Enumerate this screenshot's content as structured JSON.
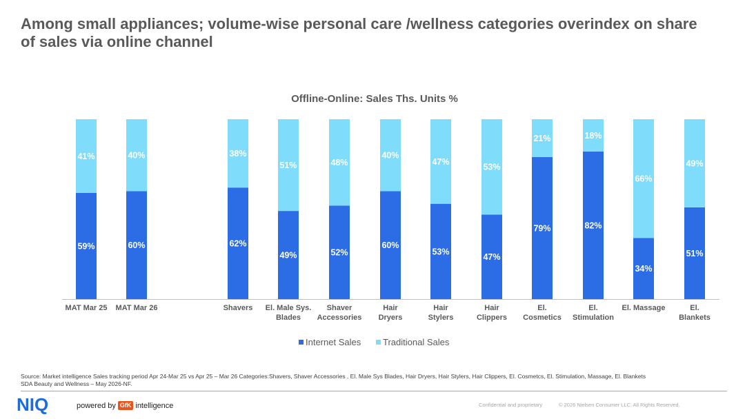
{
  "headline": "Among small appliances; volume-wise personal care /wellness categories overindex on share of sales via online channel",
  "colors": {
    "internet": "#2c6de6",
    "traditional": "#7fdcfa"
  },
  "chart_data": {
    "type": "bar",
    "stacked": true,
    "percent_stacked": true,
    "title": "Offline-Online: Sales Ths. Units %",
    "legend_position": "bottom",
    "grid": false,
    "ylim": [
      0,
      100
    ],
    "categories": [
      [
        "MAT Mar 25"
      ],
      [
        "MAT Mar 26"
      ],
      [
        "Shavers"
      ],
      [
        "El. Male Sys.",
        "Blades"
      ],
      [
        "Shaver",
        "Accessories"
      ],
      [
        "Hair",
        "Dryers"
      ],
      [
        "Hair",
        "Stylers"
      ],
      [
        "Hair",
        "Clippers"
      ],
      [
        "El.",
        "Cosmetics"
      ],
      [
        "El.",
        "Stimulation"
      ],
      [
        "El. Massage"
      ],
      [
        "El.",
        "Blankets"
      ]
    ],
    "series": [
      {
        "name": "Internet Sales",
        "values": [
          59,
          60,
          62,
          49,
          52,
          60,
          53,
          47,
          79,
          82,
          34,
          51
        ],
        "labels": [
          "59%",
          "60%",
          "62%",
          "49%",
          "52%",
          "60%",
          "53%",
          "47%",
          "79%",
          "82%",
          "34%",
          "51%"
        ]
      },
      {
        "name": "Traditional Sales",
        "values": [
          41,
          40,
          38,
          51,
          48,
          40,
          47,
          53,
          21,
          18,
          66,
          49
        ],
        "labels": [
          "41%",
          "40%",
          "38%",
          "51%",
          "48%",
          "40%",
          "47%",
          "53%",
          "21%",
          "18%",
          "66%",
          "49%"
        ]
      }
    ]
  },
  "source_lines": [
    "Source: Market intelligence Sales tracking period Apr 24-Mar 25 vs Apr 25 – Mar 26 Categories:Shavers, Shaver Accessories , El. Male Sys Blades, Hair Dryers, Hair Stylers, Hair Clippers, El. Cosmetcs, El. Stimulation, Massage, El. Blankets",
    "SDA Beauty and Wellness – May 2026-NF."
  ],
  "footer": {
    "logo": "NIQ",
    "powered_by": "powered by",
    "gfk": "GfK",
    "intelligence": "intelligence",
    "confidential": "Confidential and proprietary",
    "copyright": "© 2026 Nielsen Consumer LLC. All Rights Reserved."
  }
}
